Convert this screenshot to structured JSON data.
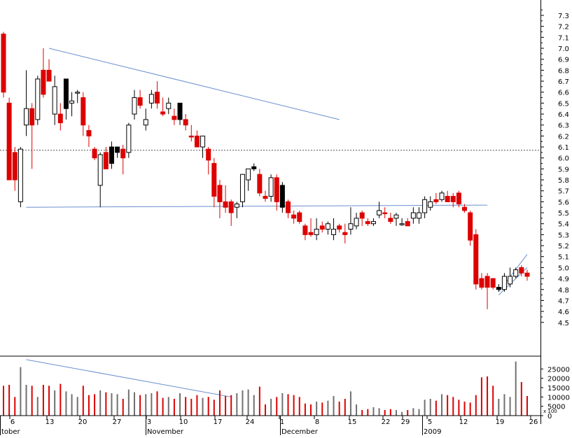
{
  "chart_data": {
    "type": "candlestick",
    "colors": {
      "down": "#dd0000",
      "up_hollow": "#ffffff",
      "up_filled": "#000000",
      "outline": "#000000",
      "trendline": "#6b8fcf",
      "volume_red": "#dd0000",
      "volume_gray": "#707070",
      "reference": "#555555"
    },
    "price_axis": {
      "ticks": [
        "7.3",
        "7.2",
        "7.1",
        "7.0",
        "6.9",
        "6.8",
        "6.7",
        "6.6",
        "6.5",
        "6.4",
        "6.3",
        "6.2",
        "6.1",
        "6.0",
        "5.9",
        "5.8",
        "5.7",
        "5.6",
        "5.5",
        "5.4",
        "5.3",
        "5.2",
        "5.1",
        "5.0",
        "4.9",
        "4.8",
        "4.7",
        "4.6",
        "4.5"
      ],
      "range": [
        4.4,
        7.35
      ],
      "reference_line": 6.07
    },
    "volume_axis": {
      "ticks": [
        "25000",
        "20000",
        "15000",
        "10000",
        "5000",
        "0"
      ],
      "unit_label": "x 100",
      "range": [
        0,
        30000
      ]
    },
    "date_axis": {
      "day_ticks": [
        "6",
        "13",
        "20",
        "27",
        "3",
        "10",
        "17",
        "24",
        "1",
        "8",
        "15",
        "22",
        "29",
        "5",
        "12",
        "19",
        "26"
      ],
      "month_labels": [
        "tober",
        "November",
        "December",
        "2009"
      ]
    },
    "candles": [
      {
        "o": 7.13,
        "h": 7.15,
        "l": 6.55,
        "c": 6.6,
        "v": 16000,
        "s": "down"
      },
      {
        "o": 6.5,
        "h": 6.55,
        "l": 5.8,
        "c": 5.8,
        "v": 16500,
        "s": "down"
      },
      {
        "o": 6.05,
        "h": 6.1,
        "l": 5.7,
        "c": 5.8,
        "v": 10000,
        "s": "down"
      },
      {
        "o": 5.6,
        "h": 6.1,
        "l": 5.55,
        "c": 6.08,
        "v": 26000,
        "s": "hollow"
      },
      {
        "o": 6.3,
        "h": 6.8,
        "l": 6.2,
        "c": 6.45,
        "v": 16500,
        "s": "hollow"
      },
      {
        "o": 6.45,
        "h": 6.5,
        "l": 5.9,
        "c": 6.3,
        "v": 16000,
        "s": "down"
      },
      {
        "o": 6.35,
        "h": 6.75,
        "l": 6.3,
        "c": 6.72,
        "v": 10000,
        "s": "hollow"
      },
      {
        "o": 6.8,
        "h": 7.0,
        "l": 6.55,
        "c": 6.58,
        "v": 16500,
        "s": "down"
      },
      {
        "o": 6.8,
        "h": 6.9,
        "l": 6.7,
        "c": 6.7,
        "v": 16000,
        "s": "down"
      },
      {
        "o": 6.65,
        "h": 6.75,
        "l": 6.3,
        "c": 6.4,
        "v": 13500,
        "s": "hollow"
      },
      {
        "o": 6.4,
        "h": 6.5,
        "l": 6.25,
        "c": 6.32,
        "v": 17000,
        "s": "down"
      },
      {
        "o": 6.45,
        "h": 6.7,
        "l": 6.35,
        "c": 6.72,
        "v": 13000,
        "s": "filled"
      },
      {
        "o": 6.5,
        "h": 6.6,
        "l": 6.38,
        "c": 6.52,
        "v": 11500,
        "s": "hollow"
      },
      {
        "o": 6.6,
        "h": 6.62,
        "l": 6.5,
        "c": 6.6,
        "v": 10000,
        "s": "hollow"
      },
      {
        "o": 6.55,
        "h": 6.6,
        "l": 6.2,
        "c": 6.3,
        "v": 16000,
        "s": "down"
      },
      {
        "o": 6.25,
        "h": 6.3,
        "l": 6.1,
        "c": 6.2,
        "v": 11000,
        "s": "down"
      },
      {
        "o": 6.08,
        "h": 6.1,
        "l": 5.98,
        "c": 6.0,
        "v": 11500,
        "s": "down"
      },
      {
        "o": 5.75,
        "h": 6.05,
        "l": 5.55,
        "c": 6.03,
        "v": 13500,
        "s": "hollow"
      },
      {
        "o": 6.05,
        "h": 6.1,
        "l": 5.9,
        "c": 5.9,
        "v": 12500,
        "s": "down"
      },
      {
        "o": 5.95,
        "h": 6.15,
        "l": 5.9,
        "c": 6.1,
        "v": 12000,
        "s": "filled"
      },
      {
        "o": 6.05,
        "h": 6.1,
        "l": 6.0,
        "c": 6.1,
        "v": 11500,
        "s": "filled"
      },
      {
        "o": 6.08,
        "h": 6.12,
        "l": 5.85,
        "c": 6.0,
        "v": 9000,
        "s": "down"
      },
      {
        "o": 6.05,
        "h": 6.32,
        "l": 6.0,
        "c": 6.3,
        "v": 14000,
        "s": "hollow"
      },
      {
        "o": 6.4,
        "h": 6.62,
        "l": 6.35,
        "c": 6.55,
        "v": 12500,
        "s": "hollow"
      },
      {
        "o": 6.55,
        "h": 6.62,
        "l": 6.45,
        "c": 6.48,
        "v": 11000,
        "s": "down"
      },
      {
        "o": 6.35,
        "h": 6.45,
        "l": 6.25,
        "c": 6.3,
        "v": 11500,
        "s": "hollow"
      },
      {
        "o": 6.5,
        "h": 6.62,
        "l": 6.45,
        "c": 6.58,
        "v": 12000,
        "s": "hollow"
      },
      {
        "o": 6.6,
        "h": 6.7,
        "l": 6.45,
        "c": 6.5,
        "v": 13000,
        "s": "down"
      },
      {
        "o": 6.42,
        "h": 6.55,
        "l": 6.38,
        "c": 6.4,
        "v": 9500,
        "s": "down"
      },
      {
        "o": 6.45,
        "h": 6.55,
        "l": 6.4,
        "c": 6.5,
        "v": 10000,
        "s": "hollow"
      },
      {
        "o": 6.38,
        "h": 6.45,
        "l": 6.3,
        "c": 6.35,
        "v": 9000,
        "s": "down"
      },
      {
        "o": 6.35,
        "h": 6.5,
        "l": 6.3,
        "c": 6.5,
        "v": 12000,
        "s": "filled"
      },
      {
        "o": 6.35,
        "h": 6.4,
        "l": 6.25,
        "c": 6.3,
        "v": 10000,
        "s": "down"
      },
      {
        "o": 6.2,
        "h": 6.3,
        "l": 6.15,
        "c": 6.2,
        "v": 9000,
        "s": "down"
      },
      {
        "o": 6.2,
        "h": 6.25,
        "l": 6.1,
        "c": 6.1,
        "v": 11000,
        "s": "down"
      },
      {
        "o": 6.1,
        "h": 6.2,
        "l": 6.0,
        "c": 6.2,
        "v": 9500,
        "s": "hollow"
      },
      {
        "o": 6.08,
        "h": 6.1,
        "l": 5.85,
        "c": 5.98,
        "v": 10000,
        "s": "down"
      },
      {
        "o": 5.95,
        "h": 6.0,
        "l": 5.55,
        "c": 5.65,
        "v": 8500,
        "s": "down"
      },
      {
        "o": 5.75,
        "h": 5.8,
        "l": 5.45,
        "c": 5.6,
        "v": 13500,
        "s": "down"
      },
      {
        "o": 5.6,
        "h": 5.75,
        "l": 5.5,
        "c": 5.55,
        "v": 10500,
        "s": "down"
      },
      {
        "o": 5.6,
        "h": 5.62,
        "l": 5.38,
        "c": 5.5,
        "v": 11000,
        "s": "down"
      },
      {
        "o": 5.55,
        "h": 5.6,
        "l": 5.45,
        "c": 5.58,
        "v": 12000,
        "s": "hollow"
      },
      {
        "o": 5.6,
        "h": 5.85,
        "l": 5.55,
        "c": 5.85,
        "v": 13500,
        "s": "hollow"
      },
      {
        "o": 5.8,
        "h": 5.9,
        "l": 5.7,
        "c": 5.9,
        "v": 14000,
        "s": "hollow"
      },
      {
        "o": 5.9,
        "h": 5.95,
        "l": 5.88,
        "c": 5.92,
        "v": 11000,
        "s": "filled"
      },
      {
        "o": 5.85,
        "h": 5.9,
        "l": 5.65,
        "c": 5.68,
        "v": 15500,
        "s": "down"
      },
      {
        "o": 5.65,
        "h": 5.7,
        "l": 5.6,
        "c": 5.63,
        "v": 6000,
        "s": "down"
      },
      {
        "o": 5.65,
        "h": 5.85,
        "l": 5.6,
        "c": 5.82,
        "v": 9000,
        "s": "hollow"
      },
      {
        "o": 5.82,
        "h": 5.85,
        "l": 5.52,
        "c": 5.6,
        "v": 10000,
        "s": "down"
      },
      {
        "o": 5.55,
        "h": 5.78,
        "l": 5.5,
        "c": 5.75,
        "v": 12000,
        "s": "filled"
      },
      {
        "o": 5.6,
        "h": 5.62,
        "l": 5.45,
        "c": 5.5,
        "v": 11500,
        "s": "down"
      },
      {
        "o": 5.48,
        "h": 5.52,
        "l": 5.4,
        "c": 5.45,
        "v": 11000,
        "s": "down"
      },
      {
        "o": 5.5,
        "h": 5.52,
        "l": 5.4,
        "c": 5.42,
        "v": 10000,
        "s": "down"
      },
      {
        "o": 5.38,
        "h": 5.4,
        "l": 5.25,
        "c": 5.3,
        "v": 6500,
        "s": "down"
      },
      {
        "o": 5.32,
        "h": 5.45,
        "l": 5.28,
        "c": 5.3,
        "v": 6000,
        "s": "down"
      },
      {
        "o": 5.35,
        "h": 5.45,
        "l": 5.25,
        "c": 5.3,
        "v": 7500,
        "s": "hollow"
      },
      {
        "o": 5.38,
        "h": 5.42,
        "l": 5.32,
        "c": 5.35,
        "v": 7000,
        "s": "down"
      },
      {
        "o": 5.35,
        "h": 5.42,
        "l": 5.3,
        "c": 5.4,
        "v": 8000,
        "s": "hollow"
      },
      {
        "o": 5.3,
        "h": 5.45,
        "l": 5.25,
        "c": 5.35,
        "v": 10500,
        "s": "hollow"
      },
      {
        "o": 5.38,
        "h": 5.4,
        "l": 5.32,
        "c": 5.35,
        "v": 7500,
        "s": "down"
      },
      {
        "o": 5.3,
        "h": 5.4,
        "l": 5.22,
        "c": 5.32,
        "v": 9000,
        "s": "down"
      },
      {
        "o": 5.35,
        "h": 5.55,
        "l": 5.3,
        "c": 5.4,
        "v": 13000,
        "s": "hollow"
      },
      {
        "o": 5.38,
        "h": 5.5,
        "l": 5.35,
        "c": 5.45,
        "v": 6000,
        "s": "hollow"
      },
      {
        "o": 5.5,
        "h": 5.52,
        "l": 5.38,
        "c": 5.45,
        "v": 3000,
        "s": "down"
      },
      {
        "o": 5.4,
        "h": 5.45,
        "l": 5.38,
        "c": 5.42,
        "v": 3500,
        "s": "down"
      },
      {
        "o": 5.4,
        "h": 5.45,
        "l": 5.38,
        "c": 5.42,
        "v": 4500,
        "s": "hollow"
      },
      {
        "o": 5.48,
        "h": 5.6,
        "l": 5.45,
        "c": 5.52,
        "v": 4000,
        "s": "hollow"
      },
      {
        "o": 5.5,
        "h": 5.55,
        "l": 5.45,
        "c": 5.5,
        "v": 3000,
        "s": "down"
      },
      {
        "o": 5.45,
        "h": 5.5,
        "l": 5.4,
        "c": 5.42,
        "v": 3500,
        "s": "down"
      },
      {
        "o": 5.45,
        "h": 5.5,
        "l": 5.38,
        "c": 5.48,
        "v": 3000,
        "s": "hollow"
      },
      {
        "o": 5.4,
        "h": 5.45,
        "l": 5.38,
        "c": 5.4,
        "v": 2000,
        "s": "hollow"
      },
      {
        "o": 5.42,
        "h": 5.45,
        "l": 5.38,
        "c": 5.38,
        "v": 3000,
        "s": "down"
      },
      {
        "o": 5.45,
        "h": 5.55,
        "l": 5.4,
        "c": 5.5,
        "v": 4000,
        "s": "hollow"
      },
      {
        "o": 5.45,
        "h": 5.55,
        "l": 5.4,
        "c": 5.5,
        "v": 3500,
        "s": "hollow"
      },
      {
        "o": 5.5,
        "h": 5.65,
        "l": 5.45,
        "c": 5.62,
        "v": 8500,
        "s": "hollow"
      },
      {
        "o": 5.55,
        "h": 5.65,
        "l": 5.52,
        "c": 5.6,
        "v": 9000,
        "s": "hollow"
      },
      {
        "o": 5.62,
        "h": 5.68,
        "l": 5.58,
        "c": 5.6,
        "v": 8000,
        "s": "down"
      },
      {
        "o": 5.62,
        "h": 5.7,
        "l": 5.6,
        "c": 5.68,
        "v": 11500,
        "s": "hollow"
      },
      {
        "o": 5.65,
        "h": 5.7,
        "l": 5.6,
        "c": 5.6,
        "v": 11000,
        "s": "down"
      },
      {
        "o": 5.65,
        "h": 5.68,
        "l": 5.55,
        "c": 5.6,
        "v": 10000,
        "s": "down"
      },
      {
        "o": 5.68,
        "h": 5.7,
        "l": 5.55,
        "c": 5.58,
        "v": 8500,
        "s": "down"
      },
      {
        "o": 5.55,
        "h": 5.58,
        "l": 5.5,
        "c": 5.52,
        "v": 7500,
        "s": "down"
      },
      {
        "o": 5.5,
        "h": 5.52,
        "l": 5.2,
        "c": 5.25,
        "v": 7000,
        "s": "down"
      },
      {
        "o": 5.3,
        "h": 5.35,
        "l": 4.8,
        "c": 4.85,
        "v": 11000,
        "s": "down"
      },
      {
        "o": 4.9,
        "h": 4.95,
        "l": 4.8,
        "c": 4.82,
        "v": 20500,
        "s": "down"
      },
      {
        "o": 4.92,
        "h": 4.95,
        "l": 4.62,
        "c": 4.82,
        "v": 21000,
        "s": "down"
      },
      {
        "o": 4.9,
        "h": 4.9,
        "l": 4.8,
        "c": 4.82,
        "v": 16000,
        "s": "down"
      },
      {
        "o": 4.82,
        "h": 4.85,
        "l": 4.78,
        "c": 4.8,
        "v": 9000,
        "s": "filled"
      },
      {
        "o": 4.8,
        "h": 4.95,
        "l": 4.78,
        "c": 4.92,
        "v": 11500,
        "s": "hollow"
      },
      {
        "o": 4.85,
        "h": 5.0,
        "l": 4.82,
        "c": 4.92,
        "v": 10000,
        "s": "hollow"
      },
      {
        "o": 4.92,
        "h": 5.0,
        "l": 4.9,
        "c": 4.98,
        "v": 29000,
        "s": "hollow"
      },
      {
        "o": 5.0,
        "h": 5.02,
        "l": 4.92,
        "c": 4.95,
        "v": 18000,
        "s": "down"
      },
      {
        "o": 4.95,
        "h": 4.98,
        "l": 4.88,
        "c": 4.92,
        "v": 10500,
        "s": "down"
      }
    ],
    "trendlines": [
      {
        "from": {
          "candle": 8,
          "price": 7.0
        },
        "to": {
          "candle": 59,
          "price": 6.35
        }
      },
      {
        "from": {
          "candle": 4,
          "price": 5.55
        },
        "to": {
          "candle": 85,
          "price": 5.57
        }
      },
      {
        "from": {
          "candle": 87,
          "price": 4.78
        },
        "to": {
          "candle": 92,
          "price": 5.12
        }
      },
      {
        "from": {
          "candle": 87,
          "price": 4.75
        },
        "to": {
          "candle": 92,
          "price": 5.0
        }
      }
    ],
    "volume_trendlines": [
      {
        "from": {
          "candle": 4,
          "volume": 30000
        },
        "to": {
          "candle": 40,
          "volume": 10000
        }
      }
    ],
    "title": "",
    "xlabel": "",
    "ylabel": "",
    "legend": "none",
    "grid": false
  }
}
